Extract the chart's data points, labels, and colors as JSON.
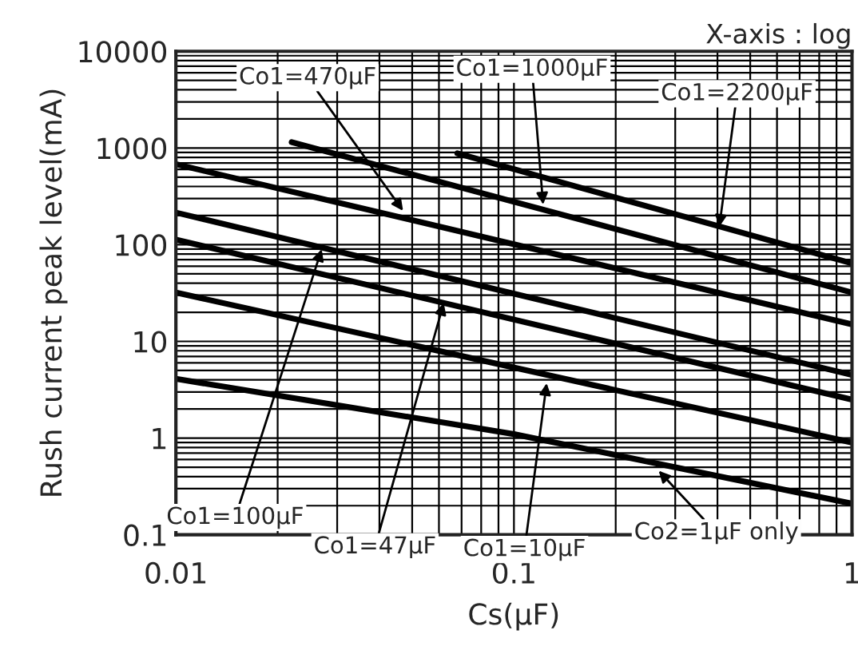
{
  "chart_data": {
    "type": "line",
    "xlabel": "Cs(μF)",
    "ylabel": "Rush current peak level(mA)",
    "log": "xy",
    "grid": true,
    "marker": "none",
    "line_style": "solid",
    "xlim": [
      0.01,
      1
    ],
    "xticks": [
      0.01,
      0.1,
      1
    ],
    "ylim": [
      0.1,
      10000
    ],
    "yticks": [
      0.1,
      1,
      10,
      100,
      1000,
      10000
    ],
    "series": [
      {
        "color": "#000000",
        "x": [
          0.068,
          1
        ],
        "values": [
          880,
          64
        ]
      },
      {
        "color": "#000000",
        "x": [
          0.022,
          1
        ],
        "values": [
          1150,
          32
        ]
      },
      {
        "color": "#000000",
        "x": [
          0.01,
          1
        ],
        "values": [
          680,
          15
        ]
      },
      {
        "color": "#000000",
        "x": [
          0.01,
          1
        ],
        "values": [
          215,
          4.5
        ]
      },
      {
        "color": "#000000",
        "x": [
          0.01,
          1
        ],
        "values": [
          113,
          2.5
        ]
      },
      {
        "color": "#000000",
        "x": [
          0.01,
          1
        ],
        "values": [
          32,
          0.9
        ]
      },
      {
        "color": "#000000",
        "x": [
          0.01,
          0.1,
          1
        ],
        "values": [
          4.1,
          1.1,
          0.21
        ]
      }
    ],
    "annotations": [
      "X-axis : log",
      {
        "text": "Co1=470μF",
        "x": 0.047,
        "y": 224
      },
      {
        "text": "Co1=1000μF",
        "x": 0.122,
        "y": 260
      },
      {
        "text": "Co1=2200μF",
        "x": 0.405,
        "y": 153
      },
      {
        "text": "Co1=100μF",
        "x": 0.027,
        "y": 90
      },
      {
        "text": "Co1=47μF",
        "x": 0.062,
        "y": 25
      },
      {
        "text": "Co1=10μF",
        "x": 0.125,
        "y": 3.7
      },
      {
        "text": "Co2=1μF only",
        "x": 0.268,
        "y": 0.46
      }
    ]
  }
}
